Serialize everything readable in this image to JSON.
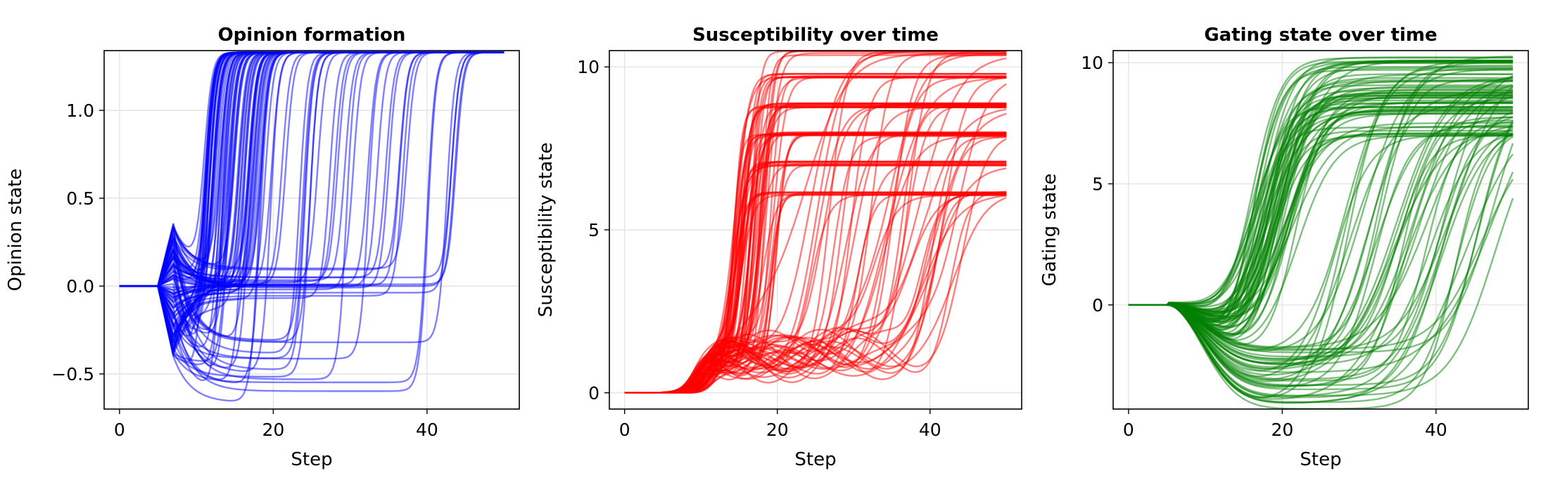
{
  "chart_data": [
    {
      "type": "line",
      "title": "Opinion formation",
      "xlabel": "Step",
      "ylabel": "Opinion state",
      "xlim": [
        -2,
        52
      ],
      "ylim": [
        -0.7,
        1.34
      ],
      "xticks": [
        0,
        20,
        40
      ],
      "yticks": [
        -0.5,
        0.0,
        0.5,
        1.0
      ],
      "ytick_labels": [
        "−0.5",
        "0.0",
        "0.5",
        "1.0"
      ],
      "grid": true,
      "color": "#0000ff",
      "series_count": 100,
      "x_range": [
        0,
        50
      ],
      "initial_value": 0.0,
      "kick_step": 5,
      "kick_peak_step": 7,
      "kick_range": [
        -0.4,
        0.36
      ],
      "high_plateau": 1.33,
      "low_plateau_range": [
        -0.7,
        -0.3
      ],
      "transition_steps": [
        10,
        44
      ]
    },
    {
      "type": "line",
      "title": "Susceptibility over time",
      "xlabel": "Step",
      "ylabel": "Susceptibility state",
      "xlim": [
        -2,
        52
      ],
      "ylim": [
        -0.5,
        10.5
      ],
      "xticks": [
        0,
        20,
        40
      ],
      "yticks": [
        0,
        5,
        10
      ],
      "ytick_labels": [
        "0",
        "5",
        "10"
      ],
      "grid": true,
      "color": "#ff0000",
      "series_count": 100,
      "x_range": [
        0,
        50
      ],
      "initial_value": 0.0,
      "early_plateau_range": [
        0.9,
        1.4
      ],
      "final_levels": [
        6.2,
        7.1,
        8.0,
        8.9,
        9.8,
        10.5
      ],
      "transition_steps": [
        13,
        45
      ]
    },
    {
      "type": "line",
      "title": "Gating state over time",
      "xlabel": "Step",
      "ylabel": "Gating state",
      "xlim": [
        -2,
        52
      ],
      "ylim": [
        -4.3,
        10.5
      ],
      "xticks": [
        0,
        20,
        40
      ],
      "yticks": [
        0,
        5,
        10
      ],
      "ytick_labels": [
        "0",
        "5",
        "10"
      ],
      "grid": true,
      "color": "#008000",
      "series_count": 100,
      "x_range": [
        0,
        50
      ],
      "initial_value": 0.0,
      "dip_range": [
        -4.3,
        -0.5
      ],
      "final_range": [
        5.5,
        10.4
      ],
      "transition_steps": [
        14,
        46
      ]
    }
  ]
}
